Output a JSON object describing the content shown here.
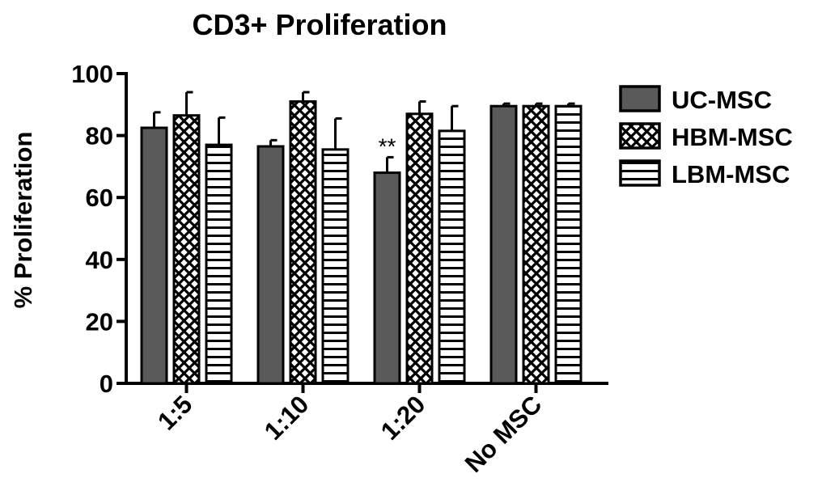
{
  "chart_data": {
    "type": "bar",
    "title": "CD3+ Proliferation",
    "xlabel": "",
    "ylabel": "% Proliferation",
    "ylim": [
      0,
      100
    ],
    "yticks": [
      "0",
      "20",
      "40",
      "60",
      "80",
      "100"
    ],
    "categories": [
      "1:5",
      "1:10",
      "1:20",
      "No MSC"
    ],
    "series": [
      {
        "name": "UC-MSC",
        "pattern": "solid",
        "color": "#5a5a5a",
        "values": [
          82.5,
          76.5,
          68.0,
          89.5
        ],
        "errors": [
          5.0,
          2.0,
          5.0,
          0.8
        ]
      },
      {
        "name": "HBM-MSC",
        "pattern": "crosshatch",
        "color": "#000000",
        "values": [
          86.5,
          91.0,
          87.0,
          89.5
        ],
        "errors": [
          7.5,
          3.0,
          4.0,
          0.8
        ]
      },
      {
        "name": "LBM-MSC",
        "pattern": "horizontal-lines",
        "color": "#000000",
        "values": [
          77.0,
          75.5,
          81.5,
          89.5
        ],
        "errors": [
          8.8,
          10.0,
          8.0,
          0.8
        ]
      }
    ],
    "annotations": [
      {
        "text": "**",
        "category": "1:20",
        "series": "UC-MSC"
      }
    ],
    "legend_position": "top-right",
    "grid": false
  }
}
